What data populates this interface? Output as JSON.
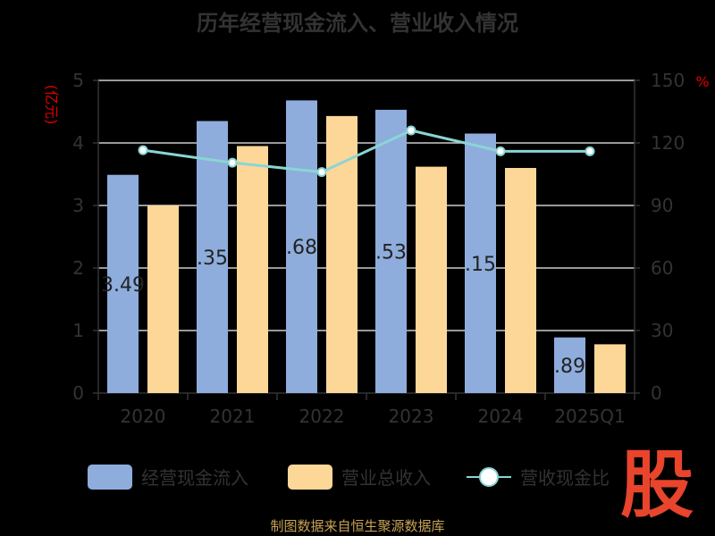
{
  "source_text": "制图数据来自恒生聚源数据库",
  "logo_text": "股",
  "colors": {
    "series_cashflow": "#8eaddc",
    "series_revenue": "#fdd798",
    "series_ratio": "#8ad5d5",
    "axis": "#333333",
    "grid": "#cccccc",
    "unit": "#e00000"
  },
  "chart_data": {
    "type": "bar",
    "title": "历年经营现金流入、营业收入情况",
    "categories": [
      "2020",
      "2021",
      "2022",
      "2023",
      "2024",
      "2025Q1"
    ],
    "y_left": {
      "unit": "(亿元)",
      "ticks": [
        "0",
        "1",
        "2",
        "3",
        "4",
        "5"
      ],
      "ylim": [
        0,
        5
      ]
    },
    "y_right": {
      "unit": "%",
      "ticks": [
        "0",
        "30",
        "60",
        "90",
        "120",
        "150"
      ],
      "ylim": [
        0,
        150
      ]
    },
    "series": [
      {
        "name": "经营现金流入",
        "type": "bar",
        "axis": "left",
        "values": [
          3.49,
          4.35,
          4.68,
          4.53,
          4.15,
          0.89
        ],
        "labels": [
          "3.49",
          ".35",
          ".68",
          ".53",
          ".15",
          ".89"
        ]
      },
      {
        "name": "营业总收入",
        "type": "bar",
        "axis": "left",
        "values": [
          3.0,
          3.95,
          4.43,
          3.62,
          3.6,
          0.78
        ]
      },
      {
        "name": "营收现金比",
        "type": "line",
        "axis": "right",
        "values": [
          116.5,
          110.5,
          106,
          126,
          116,
          116
        ]
      }
    ],
    "legend": {
      "position": "bottom"
    },
    "grid": true
  }
}
